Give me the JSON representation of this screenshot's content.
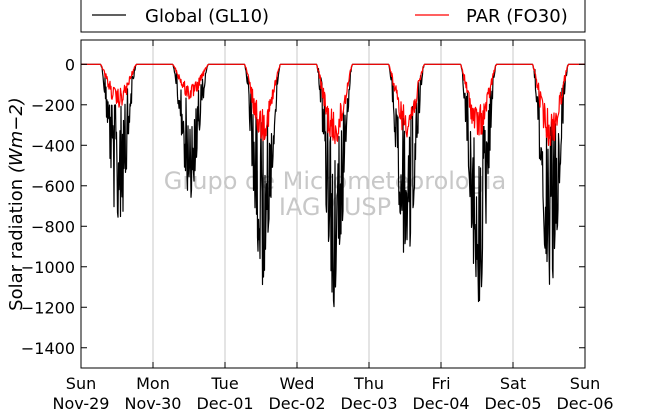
{
  "chart_data": {
    "type": "line",
    "title": "",
    "xlabel": "",
    "ylabel": "Solar radiation",
    "ylabel_unit": "(Wm−2)",
    "ylim": [
      -1500,
      120
    ],
    "yticks": [
      0,
      -200,
      -400,
      -600,
      -800,
      -1000,
      -1200,
      -1400
    ],
    "ytick_labels": [
      "0",
      "−200",
      "−400",
      "−600",
      "−800",
      "−1000",
      "−1200",
      "−1400"
    ],
    "xlim": [
      0,
      7
    ],
    "xticks": [
      {
        "day": "Sun",
        "date": "Nov-29"
      },
      {
        "day": "Mon",
        "date": "Nov-30"
      },
      {
        "day": "Tue",
        "date": "Dec-01"
      },
      {
        "day": "Wed",
        "date": "Dec-02"
      },
      {
        "day": "Thu",
        "date": "Dec-03"
      },
      {
        "day": "Fri",
        "date": "Dec-04"
      },
      {
        "day": "Sat",
        "date": "Dec-05"
      },
      {
        "day": "Sun",
        "date": "Dec-06"
      }
    ],
    "grid": "vertical",
    "legend_position": "top",
    "watermark": [
      "Grupo de Micrometeorologia",
      "IAG / USP"
    ],
    "series": [
      {
        "name": "Global (GL10)",
        "color": "#000000",
        "daily_min": [
          -830,
          -670,
          -1110,
          -1200,
          -1020,
          -1200,
          -1130
        ]
      },
      {
        "name": "PAR (FO30)",
        "color": "#ff0000",
        "daily_min": [
          -220,
          -180,
          -380,
          -420,
          -360,
          -370,
          -410
        ]
      }
    ]
  }
}
